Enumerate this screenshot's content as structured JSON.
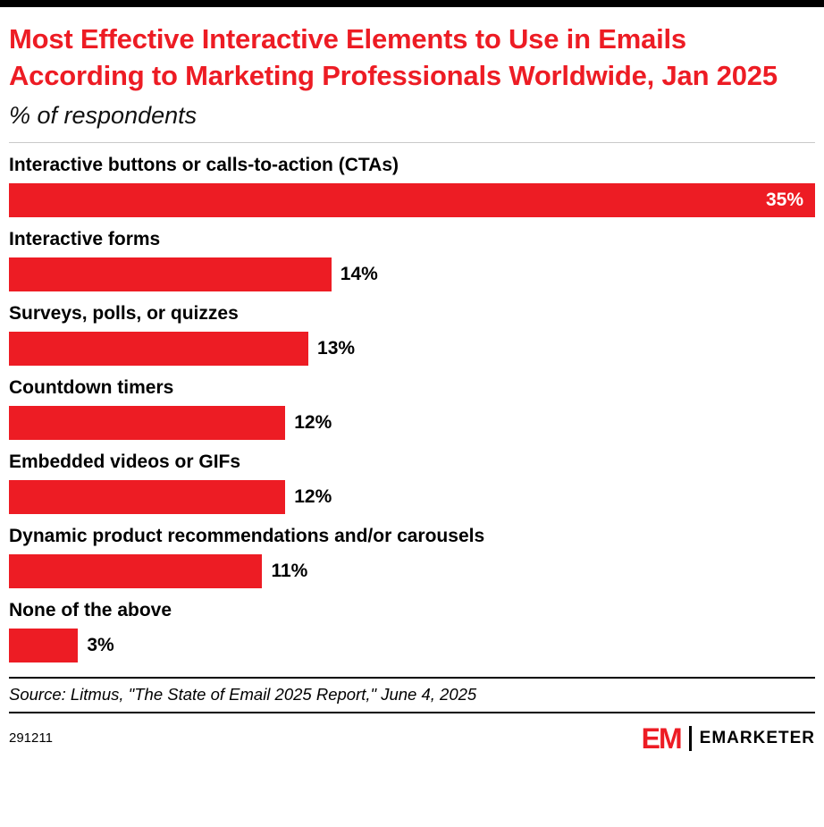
{
  "header": {
    "title": "Most Effective Interactive Elements to Use in Emails According to Marketing Professionals Worldwide, Jan 2025",
    "subtitle": "% of respondents"
  },
  "chart_data": {
    "type": "bar",
    "orientation": "horizontal",
    "title": "Most Effective Interactive Elements to Use in Emails According to Marketing Professionals Worldwide, Jan 2025",
    "subtitle": "% of respondents",
    "categories": [
      "Interactive buttons or calls-to-action (CTAs)",
      "Interactive forms",
      "Surveys, polls, or quizzes",
      "Countdown timers",
      "Embedded videos or GIFs",
      "Dynamic product recommendations and/or carousels",
      "None of the above"
    ],
    "values": [
      35,
      14,
      13,
      12,
      12,
      11,
      3
    ],
    "value_labels": [
      "35%",
      "14%",
      "13%",
      "12%",
      "12%",
      "11%",
      "3%"
    ],
    "value_suffix": "%",
    "xlim": [
      0,
      35
    ],
    "grid": false,
    "legend": false,
    "bar_color": "#ED1C24",
    "max_value_label_position": "inside-end",
    "other_value_label_position": "outside-end"
  },
  "footer": {
    "source": "Source: Litmus, \"The State of Email 2025 Report,\" June 4, 2025",
    "chart_number": "291211",
    "brand_em": "EM",
    "brand_name": "EMARKETER"
  }
}
